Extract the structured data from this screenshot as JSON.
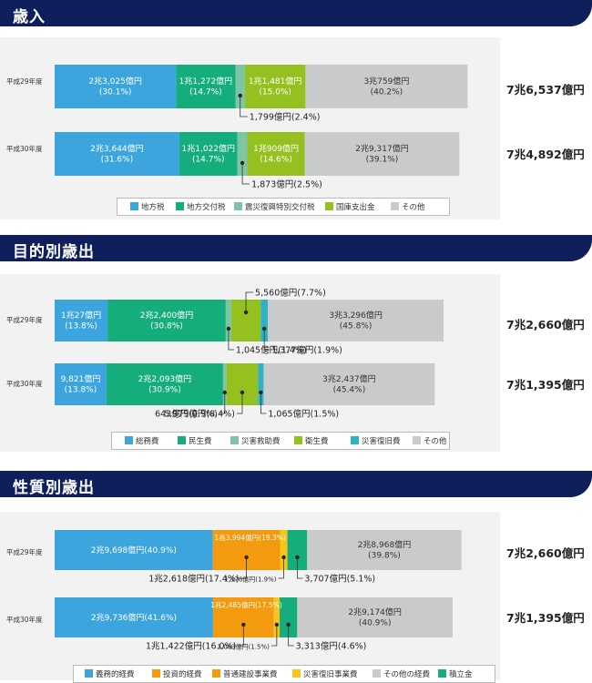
{
  "colors": {
    "header_bg": "#0f1f5c",
    "panel_bg": "#f2f2f2",
    "blue": "#3da5dd",
    "green": "#16ad7d",
    "light_green": "#7ec5a5",
    "lime": "#94c11f",
    "cyan": "#2fb3c3",
    "gray": "#c8cacb",
    "orange": "#f39a0f",
    "yellow": "#f8c31a"
  },
  "chart_data": [
    {
      "type": "bar",
      "orientation": "horizontal-stacked",
      "title": "歳入",
      "categories": [
        "平成29年度",
        "平成30年度"
      ],
      "totals": [
        "7兆6,537億円",
        "7兆4,892億円"
      ],
      "series": [
        {
          "name": "地方税",
          "values": [
            23025,
            23644
          ],
          "labels": [
            "2兆3,025億円\n(30.1%)",
            "2兆3,644億円\n(31.6%)"
          ],
          "color": "#3da5dd"
        },
        {
          "name": "地方交付税",
          "values": [
            11272,
            11022
          ],
          "labels": [
            "1兆1,272億円\n(14.7%)",
            "1兆1,022億円\n(14.7%)"
          ],
          "color": "#16ad7d"
        },
        {
          "name": "震災復興特別交付税",
          "values": [
            1799,
            1873
          ],
          "labels": [
            "1,799億円(2.4%)",
            "1,873億円(2.5%)"
          ],
          "color": "#7ec5a5"
        },
        {
          "name": "国庫支出金",
          "values": [
            11481,
            10909
          ],
          "labels": [
            "1兆1,481億円\n(15.0%)",
            "1兆909億円\n(14.6%)"
          ],
          "color": "#94c11f"
        },
        {
          "name": "その他",
          "values": [
            30759,
            29317
          ],
          "labels": [
            "3兆759億円\n(40.2%)",
            "2兆9,317億円\n(39.1%)"
          ],
          "color": "#c8cacb"
        }
      ]
    },
    {
      "type": "bar",
      "orientation": "horizontal-stacked",
      "title": "目的別歳出",
      "categories": [
        "平成29年度",
        "平成30年度"
      ],
      "totals": [
        "7兆2,660億円",
        "7兆1,395億円"
      ],
      "series": [
        {
          "name": "総務費",
          "values": [
            10027,
            9821
          ],
          "labels": [
            "1兆27億円\n(13.8%)",
            "9,821億円\n(13.8%)"
          ],
          "color": "#3da5dd"
        },
        {
          "name": "民生費",
          "values": [
            22400,
            22093
          ],
          "labels": [
            "2兆2,400億円\n(30.8%)",
            "2兆2,093億円\n(30.9%)"
          ],
          "color": "#16ad7d"
        },
        {
          "name": "災害救助費",
          "values": [
            1045,
            643
          ],
          "labels": [
            "1,045億円(1.4%)",
            "643億円(0.9%)"
          ],
          "color": "#7ec5a5"
        },
        {
          "name": "衛生費",
          "values": [
            5560,
            5979
          ],
          "labels": [
            "5,560億円(7.7%)",
            "5,979億円(8.4%)"
          ],
          "color": "#94c11f"
        },
        {
          "name": "災害復旧費",
          "values": [
            1377,
            1065
          ],
          "labels": [
            "1,377億円(1.9%)",
            "1,065億円(1.5%)"
          ],
          "color": "#2fb3c3"
        },
        {
          "name": "その他",
          "values": [
            33296,
            32437
          ],
          "labels": [
            "3兆3,296億円\n(45.8%)",
            "3兆2,437億円\n(45.4%)"
          ],
          "color": "#c8cacb"
        }
      ]
    },
    {
      "type": "bar",
      "orientation": "horizontal-stacked",
      "title": "性質別歳出",
      "categories": [
        "平成29年度",
        "平成30年度"
      ],
      "totals": [
        "7兆2,660億円",
        "7兆1,395億円"
      ],
      "series": [
        {
          "name": "義務的経費",
          "values": [
            29698,
            29736
          ],
          "labels": [
            "2兆9,698億円(40.9%)",
            "2兆9,736億円(41.6%)"
          ],
          "color": "#3da5dd"
        },
        {
          "name": "投資的経費",
          "values": [
            13994,
            12485
          ],
          "labels": [
            "1兆3,994億円(19.3%)",
            "1兆2,485億円(17.5%)"
          ],
          "color": "#f39a0f"
        },
        {
          "name": "普通建設事業費",
          "values": [
            12618,
            11422
          ],
          "labels": [
            "1兆2,618億円(17.4%)",
            "1兆1,422億円(16.0%)"
          ],
          "color": "#f39a0f"
        },
        {
          "name": "災害復旧事業費",
          "values": [
            1376,
            1063
          ],
          "labels": [
            "1,376億円(1.9%)",
            "1,063億円(1.5%)"
          ],
          "color": "#f8c31a"
        },
        {
          "name": "その他の経費",
          "values": [
            28968,
            29174
          ],
          "labels": [
            "2兆8,968億円\n(39.8%)",
            "2兆9,174億円\n(40.9%)"
          ],
          "color": "#c8cacb"
        },
        {
          "name": "積立金",
          "values": [
            3707,
            3313
          ],
          "labels": [
            "3,707億円(5.1%)",
            "3,313億円(4.6%)"
          ],
          "color": "#16ad7d"
        }
      ]
    }
  ]
}
